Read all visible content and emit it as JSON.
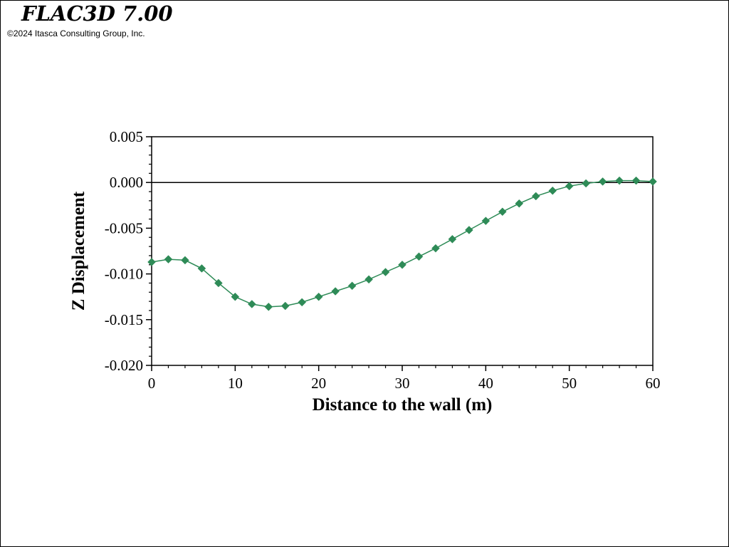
{
  "app": {
    "title": "FLAC3D 7.00",
    "copyright": "©2024 Itasca Consulting Group, Inc."
  },
  "chart_data": {
    "type": "line",
    "title": "",
    "xlabel": "Distance to the wall (m)",
    "ylabel": "Z Displacement",
    "xlim": [
      0,
      60
    ],
    "ylim": [
      -0.02,
      0.005
    ],
    "x_ticks": [
      "0",
      "10",
      "20",
      "30",
      "40",
      "50",
      "60"
    ],
    "y_ticks": [
      "0.005",
      "0.000",
      "-0.005",
      "-0.010",
      "-0.015",
      "-0.020"
    ],
    "zero_line": true,
    "grid": false,
    "legend": "none",
    "colors": {
      "series": "#2e8b57",
      "axes": "#000000"
    },
    "marker": "diamond",
    "series": [
      {
        "x": [
          0,
          2,
          4,
          6,
          8,
          10,
          12,
          14,
          16,
          18,
          20,
          22,
          24,
          26,
          28,
          30,
          32,
          34,
          36,
          38,
          40,
          42,
          44,
          46,
          48,
          50,
          52,
          54,
          56,
          58,
          60
        ],
        "values": [
          -0.0087,
          -0.0084,
          -0.0085,
          -0.0094,
          -0.011,
          -0.0125,
          -0.0133,
          -0.0136,
          -0.0135,
          -0.0131,
          -0.0125,
          -0.0119,
          -0.0113,
          -0.0106,
          -0.0098,
          -0.009,
          -0.0081,
          -0.0072,
          -0.0062,
          -0.0052,
          -0.0042,
          -0.0032,
          -0.0023,
          -0.0015,
          -0.0009,
          -0.0004,
          -0.0001,
          0.0001,
          0.0002,
          0.0002,
          0.0001
        ]
      }
    ]
  }
}
